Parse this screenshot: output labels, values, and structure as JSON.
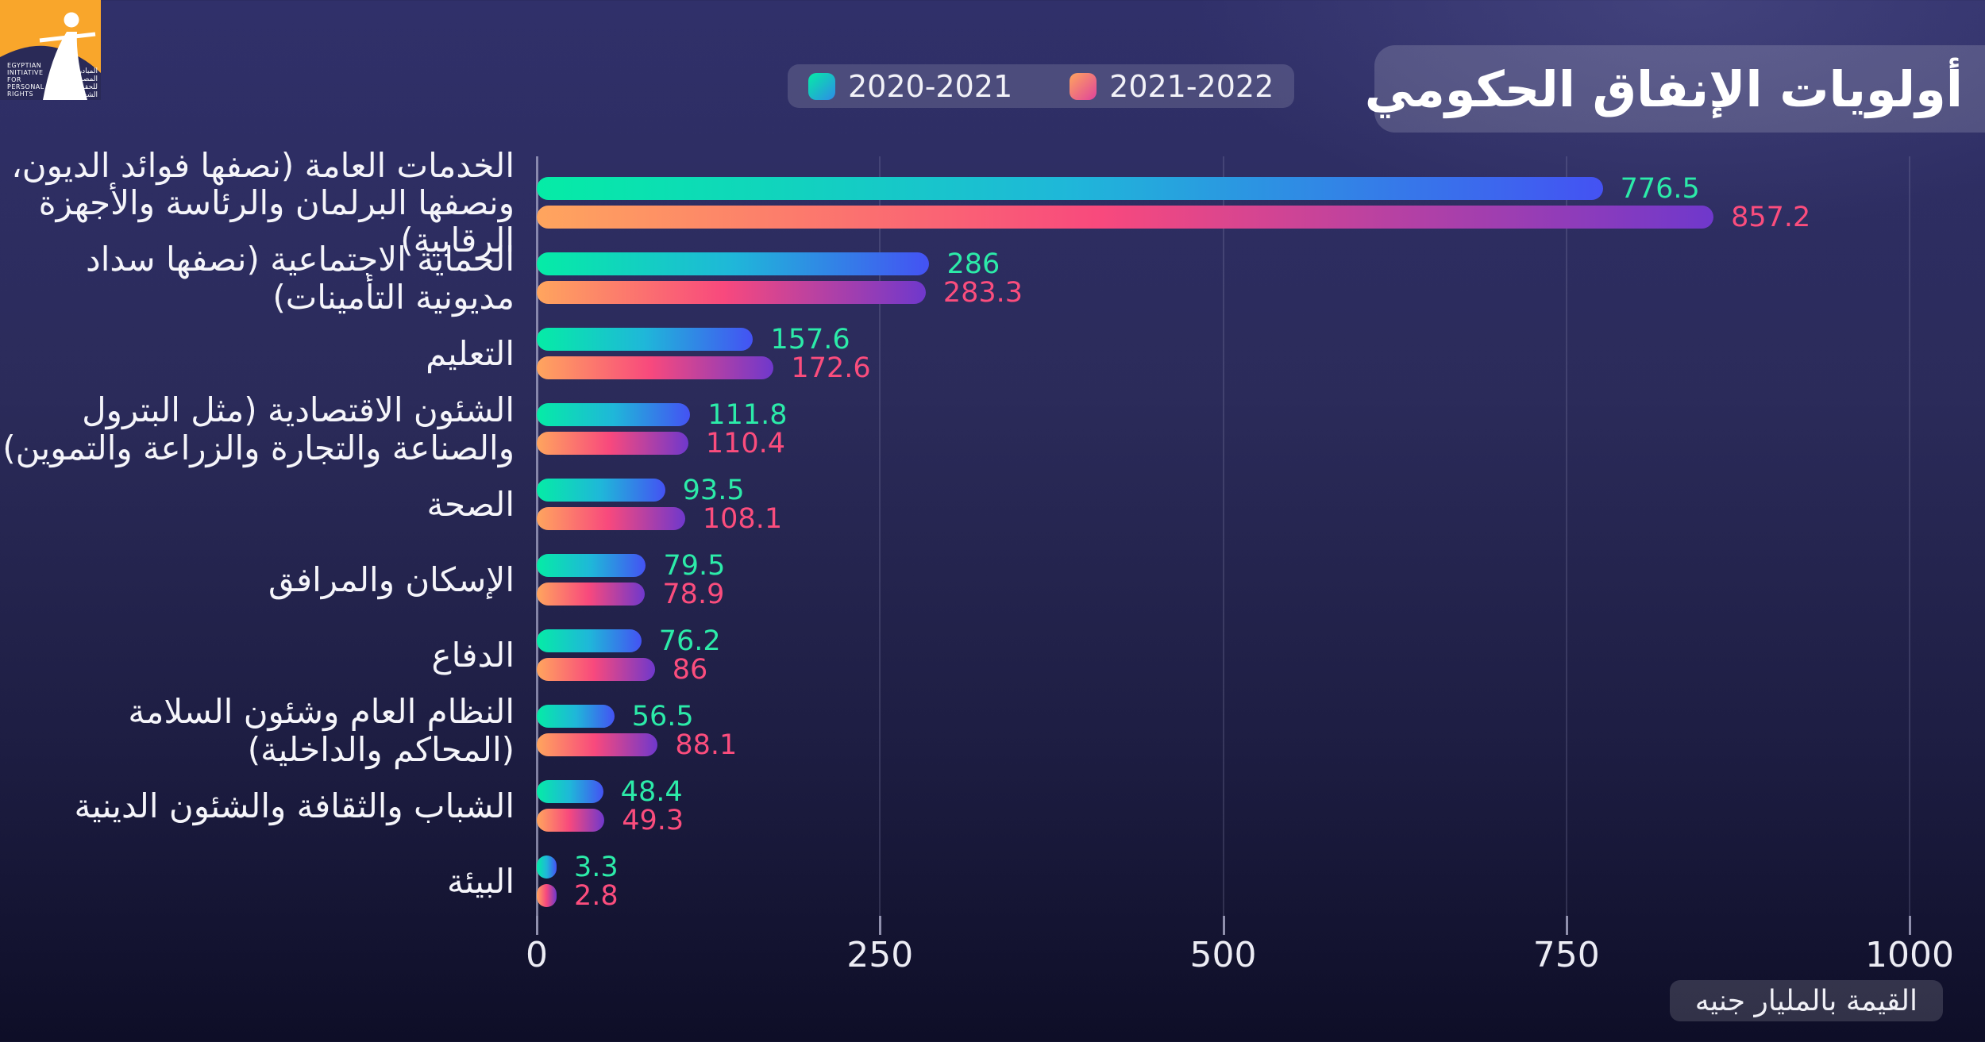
{
  "header": {
    "title": "أولويات الإنفاق الحكومي"
  },
  "logo": {
    "en_lines": [
      "EGYPTIAN",
      "INITIATIVE",
      "FOR",
      "PERSONAL",
      "RIGHTS"
    ],
    "ar_lines": [
      "المبادرة",
      "المصرية",
      "للحقوق",
      "الشخصية"
    ],
    "orange": "#F9A62B",
    "navy": "#2A2A57"
  },
  "legend": {
    "items": [
      {
        "label": "2020-2021"
      },
      {
        "label": "2021-2022"
      }
    ]
  },
  "unit_note": "القيمة بالمليار جنيه",
  "colors": {
    "series1_gradient": [
      "#05ECA6",
      "#1FB7D9",
      "#4452F3"
    ],
    "series2_gradient": [
      "#FFA55E",
      "#F8497D",
      "#6F38CC"
    ],
    "series1_value_text": "#2CEBA9",
    "series2_value_text": "#FB4D7D",
    "legend_swatch1": [
      "#05ECA6",
      "#2E8BE8"
    ],
    "legend_swatch2": [
      "#FFA55E",
      "#E0439B"
    ]
  },
  "chart_data": {
    "type": "bar",
    "orientation": "horizontal",
    "title": "أولويات الإنفاق الحكومي",
    "unit_label": "القيمة بالمليار جنيه",
    "grid": true,
    "legend_position": "top-center",
    "xlim": [
      0,
      1000
    ],
    "x_ticks": [
      0,
      250,
      500,
      750,
      1000
    ],
    "categories": [
      "الخدمات العامة (نصفها فوائد الديون، ونصفها البرلمان والرئاسة والأجهزة الرقابية)",
      "الحماية الاجتماعية (نصفها سداد مديونية التأمينات)",
      "التعليم",
      "الشئون الاقتصادية (مثل البترول والصناعة والتجارة والزراعة والتموين)",
      "الصحة",
      "الإسكان والمرافق",
      "الدفاع",
      "النظام العام وشئون السلامة (المحاكم والداخلية)",
      "الشباب والثقافة والشئون الدينية",
      "البيئة"
    ],
    "category_lines": [
      [
        "الخدمات العامة (نصفها فوائد الديون،",
        "ونصفها البرلمان والرئاسة والأجهزة الرقابية)"
      ],
      [
        "الحماية الاجتماعية (نصفها سداد",
        "مديونية التأمينات)"
      ],
      [
        "التعليم"
      ],
      [
        "الشئون الاقتصادية (مثل البترول",
        "والصناعة والتجارة والزراعة والتموين)"
      ],
      [
        "الصحة"
      ],
      [
        "الإسكان والمرافق"
      ],
      [
        "الدفاع"
      ],
      [
        "النظام العام وشئون السلامة",
        "(المحاكم والداخلية)"
      ],
      [
        "الشباب والثقافة والشئون الدينية"
      ],
      [
        "البيئة"
      ]
    ],
    "series": [
      {
        "name": "2020-2021",
        "values": [
          776.5,
          286,
          157.6,
          111.8,
          93.5,
          79.5,
          76.2,
          56.5,
          48.4,
          3.3
        ]
      },
      {
        "name": "2021-2022",
        "values": [
          857.2,
          283.3,
          172.6,
          110.4,
          108.1,
          78.9,
          86,
          88.1,
          49.3,
          2.8
        ]
      }
    ]
  }
}
